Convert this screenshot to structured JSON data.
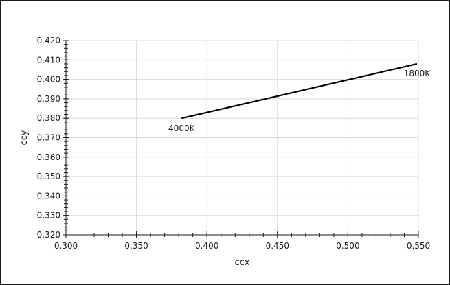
{
  "chart_data": {
    "type": "line",
    "title": "",
    "xlabel": "ccx",
    "ylabel": "ccy",
    "xlim": [
      0.3,
      0.55
    ],
    "ylim": [
      0.32,
      0.42
    ],
    "x_ticks": [
      "0.300",
      "0.350",
      "0.400",
      "0.450",
      "0.500",
      "0.550"
    ],
    "y_ticks": [
      "0.320",
      "0.330",
      "0.340",
      "0.350",
      "0.360",
      "0.370",
      "0.380",
      "0.390",
      "0.400",
      "0.410",
      "0.420"
    ],
    "x_tick_values": [
      0.3,
      0.35,
      0.4,
      0.45,
      0.5,
      0.55
    ],
    "y_tick_values": [
      0.32,
      0.33,
      0.34,
      0.35,
      0.36,
      0.37,
      0.38,
      0.39,
      0.4,
      0.41,
      0.42
    ],
    "grid": true,
    "legend": "none",
    "series": [
      {
        "color": "#000000",
        "points": [
          {
            "x": 0.382,
            "y": 0.38
          },
          {
            "x": 0.549,
            "y": 0.408
          }
        ]
      }
    ],
    "annotations": [
      {
        "text": "4000K",
        "x": 0.382,
        "y": 0.38
      },
      {
        "text": "1800K",
        "x": 0.549,
        "y": 0.408
      }
    ]
  }
}
